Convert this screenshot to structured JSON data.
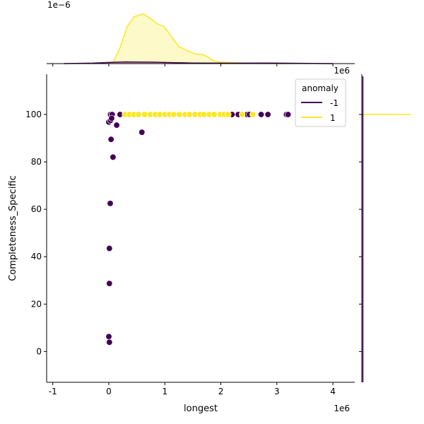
{
  "chart_data": {
    "type": "scatter",
    "subtype": "jointplot",
    "xlabel": "longest",
    "ylabel": "Completeness_Specific",
    "x_offset_label": "1e6",
    "xlim": [
      -1.11,
      4.39
    ],
    "ylim": [
      -13,
      117
    ],
    "xticks": [
      -1,
      0,
      1,
      2,
      3,
      4
    ],
    "yticks": [
      0,
      20,
      40,
      60,
      80,
      100
    ],
    "grid": false,
    "legend": {
      "title": "anomaly",
      "placement": "top-right",
      "entries": [
        {
          "label": "-1",
          "color": "#440154"
        },
        {
          "label": "1",
          "color": "#fde725"
        }
      ]
    },
    "series": [
      {
        "name": "-1",
        "color": "#440154",
        "points": [
          [
            0.03,
            100
          ],
          [
            0.06,
            100
          ],
          [
            0.2,
            100
          ],
          [
            2.2,
            100
          ],
          [
            2.31,
            100
          ],
          [
            2.47,
            100
          ],
          [
            2.51,
            100
          ],
          [
            2.72,
            100
          ],
          [
            2.84,
            100
          ],
          [
            3.17,
            100
          ],
          [
            3.2,
            100
          ],
          [
            0.0,
            96.8
          ],
          [
            0.03,
            97.5
          ],
          [
            0.05,
            98.4
          ],
          [
            0.14,
            95.5
          ],
          [
            0.59,
            92.5
          ],
          [
            0.04,
            89.5
          ],
          [
            0.075,
            82
          ],
          [
            0.025,
            62.5
          ],
          [
            0.01,
            43.5
          ],
          [
            0.01,
            28.7
          ],
          [
            0.0,
            6.3
          ],
          [
            0.01,
            3.9
          ]
        ]
      },
      {
        "name": "1",
        "color": "#fde725",
        "points": [
          [
            0.29,
            100
          ],
          [
            0.37,
            100
          ],
          [
            0.45,
            100
          ],
          [
            0.53,
            100
          ],
          [
            0.64,
            100
          ],
          [
            0.74,
            100
          ],
          [
            0.83,
            100
          ],
          [
            0.91,
            100
          ],
          [
            1.0,
            100
          ],
          [
            1.08,
            100
          ],
          [
            1.16,
            100
          ],
          [
            1.26,
            100
          ],
          [
            1.36,
            100
          ],
          [
            1.44,
            100
          ],
          [
            1.54,
            100
          ],
          [
            1.63,
            100
          ],
          [
            1.7,
            100
          ],
          [
            1.79,
            100
          ],
          [
            1.88,
            100
          ],
          [
            1.99,
            100
          ],
          [
            2.06,
            100
          ],
          [
            2.13,
            100
          ],
          [
            2.38,
            100
          ],
          [
            2.57,
            100
          ]
        ]
      }
    ],
    "top_marginal": {
      "type": "kde",
      "y_offset_label": "1e−6",
      "ylim": [
        0,
        1.0
      ],
      "series": [
        {
          "name": "1",
          "color": "#fde725",
          "x": [
            -0.3,
            0.08,
            0.2,
            0.33,
            0.45,
            0.62,
            0.74,
            0.87,
            0.98,
            1.11,
            1.25,
            1.42,
            1.55,
            1.68,
            1.75,
            1.88,
            2.0,
            2.31,
            2.6,
            3.2
          ],
          "density": [
            0,
            0.025,
            0.28,
            0.66,
            0.83,
            0.88,
            0.8,
            0.7,
            0.66,
            0.49,
            0.3,
            0.22,
            0.17,
            0.16,
            0.125,
            0.045,
            0.025,
            0.012,
            0.003,
            0
          ]
        },
        {
          "name": "-1",
          "color": "#440154",
          "x": [
            -0.8,
            -0.3,
            0.0,
            0.3,
            0.8,
            1.5,
            2.2,
            2.8,
            3.4,
            4.0
          ],
          "density": [
            0,
            0.008,
            0.02,
            0.03,
            0.025,
            0.01,
            0.008,
            0.01,
            0.005,
            0
          ]
        }
      ]
    },
    "right_marginal": {
      "type": "kde",
      "series": [
        {
          "name": "1",
          "color": "#fde725",
          "note_value": 100
        },
        {
          "name": "-1",
          "color": "#440154"
        }
      ]
    }
  }
}
